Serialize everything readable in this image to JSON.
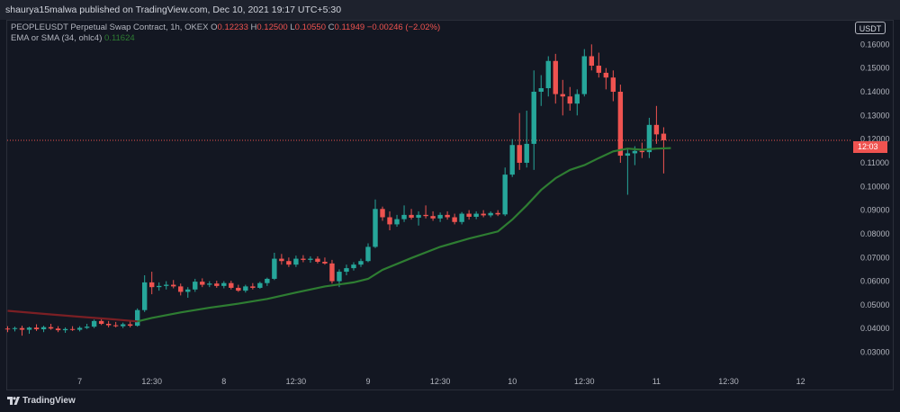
{
  "header": {
    "published": "shaurya15malwa published on TradingView.com, Dec 10, 2021 19:17 UTC+5:30"
  },
  "legend": {
    "symbol": "PEOPLEUSDT Perpetual Swap Contract, 1h, OKEX",
    "o_key": "O",
    "o_val": "0.12233",
    "h_key": "H",
    "h_val": "0.12500",
    "l_key": "L",
    "l_val": "0.10550",
    "c_key": "C",
    "c_val": "0.11949",
    "chg": "−0.00246 (−2.02%)",
    "ma_label": "EMA or SMA (34, ohlc4)",
    "ma_val": "0.11624"
  },
  "currency": "USDT",
  "countdown": "12:03",
  "footer": {
    "brand": "TradingView"
  },
  "colors": {
    "up": "#26a69a",
    "down": "#ef5350",
    "ma": "#2e7d32",
    "ma_early": "#7b1f24",
    "bg": "#131722"
  },
  "chart_data": {
    "type": "candlestick",
    "timeframe": "1h",
    "ylim": [
      0.023,
      0.17
    ],
    "y_ticks": [
      "0.16000",
      "0.15000",
      "0.14000",
      "0.13000",
      "0.12000",
      "0.11000",
      "0.10000",
      "0.09000",
      "0.08000",
      "0.07000",
      "0.06000",
      "0.05000",
      "0.04000",
      "0.03000"
    ],
    "y_tick_values": [
      0.16,
      0.15,
      0.14,
      0.13,
      0.12,
      0.11,
      0.1,
      0.09,
      0.08,
      0.07,
      0.06,
      0.05,
      0.04,
      0.03
    ],
    "x_ticks": [
      "7",
      "12:30",
      "8",
      "12:30",
      "9",
      "12:30",
      "10",
      "12:30",
      "11",
      "12:30",
      "12"
    ],
    "x_tick_index": [
      10,
      20,
      30,
      40,
      50,
      60,
      70,
      80,
      90,
      100,
      110
    ],
    "last_price": 0.1195,
    "candles": [
      {
        "o": 0.04,
        "h": 0.041,
        "l": 0.0385,
        "c": 0.0398
      },
      {
        "o": 0.0398,
        "h": 0.0408,
        "l": 0.0388,
        "c": 0.0402
      },
      {
        "o": 0.0402,
        "h": 0.0412,
        "l": 0.037,
        "c": 0.0395
      },
      {
        "o": 0.0395,
        "h": 0.0408,
        "l": 0.0378,
        "c": 0.0404
      },
      {
        "o": 0.0404,
        "h": 0.0418,
        "l": 0.039,
        "c": 0.0397
      },
      {
        "o": 0.0397,
        "h": 0.0412,
        "l": 0.0385,
        "c": 0.0406
      },
      {
        "o": 0.0406,
        "h": 0.042,
        "l": 0.0395,
        "c": 0.04
      },
      {
        "o": 0.04,
        "h": 0.041,
        "l": 0.0385,
        "c": 0.0393
      },
      {
        "o": 0.0393,
        "h": 0.0405,
        "l": 0.0382,
        "c": 0.0398
      },
      {
        "o": 0.0398,
        "h": 0.041,
        "l": 0.039,
        "c": 0.0395
      },
      {
        "o": 0.0395,
        "h": 0.041,
        "l": 0.0388,
        "c": 0.0403
      },
      {
        "o": 0.0403,
        "h": 0.042,
        "l": 0.0398,
        "c": 0.0408
      },
      {
        "o": 0.0408,
        "h": 0.0438,
        "l": 0.0402,
        "c": 0.0432
      },
      {
        "o": 0.0432,
        "h": 0.0445,
        "l": 0.0415,
        "c": 0.042
      },
      {
        "o": 0.042,
        "h": 0.0432,
        "l": 0.0405,
        "c": 0.0414
      },
      {
        "o": 0.0414,
        "h": 0.0428,
        "l": 0.0405,
        "c": 0.041
      },
      {
        "o": 0.041,
        "h": 0.0425,
        "l": 0.0402,
        "c": 0.0418
      },
      {
        "o": 0.0418,
        "h": 0.043,
        "l": 0.0405,
        "c": 0.0412
      },
      {
        "o": 0.0412,
        "h": 0.0485,
        "l": 0.0408,
        "c": 0.0478
      },
      {
        "o": 0.0478,
        "h": 0.0625,
        "l": 0.047,
        "c": 0.0595
      },
      {
        "o": 0.0595,
        "h": 0.064,
        "l": 0.0545,
        "c": 0.0575
      },
      {
        "o": 0.0575,
        "h": 0.0595,
        "l": 0.056,
        "c": 0.058
      },
      {
        "o": 0.058,
        "h": 0.06,
        "l": 0.0565,
        "c": 0.0585
      },
      {
        "o": 0.0585,
        "h": 0.0605,
        "l": 0.057,
        "c": 0.0578
      },
      {
        "o": 0.0578,
        "h": 0.059,
        "l": 0.054,
        "c": 0.0555
      },
      {
        "o": 0.0555,
        "h": 0.0575,
        "l": 0.053,
        "c": 0.0565
      },
      {
        "o": 0.0565,
        "h": 0.061,
        "l": 0.0555,
        "c": 0.0598
      },
      {
        "o": 0.0598,
        "h": 0.0612,
        "l": 0.0575,
        "c": 0.0585
      },
      {
        "o": 0.0585,
        "h": 0.06,
        "l": 0.0575,
        "c": 0.059
      },
      {
        "o": 0.059,
        "h": 0.0602,
        "l": 0.0572,
        "c": 0.058
      },
      {
        "o": 0.058,
        "h": 0.06,
        "l": 0.057,
        "c": 0.0592
      },
      {
        "o": 0.0592,
        "h": 0.0602,
        "l": 0.0565,
        "c": 0.0572
      },
      {
        "o": 0.0572,
        "h": 0.0585,
        "l": 0.0555,
        "c": 0.056
      },
      {
        "o": 0.056,
        "h": 0.0585,
        "l": 0.0552,
        "c": 0.0578
      },
      {
        "o": 0.0578,
        "h": 0.0592,
        "l": 0.0565,
        "c": 0.0572
      },
      {
        "o": 0.0572,
        "h": 0.0598,
        "l": 0.0568,
        "c": 0.0592
      },
      {
        "o": 0.0592,
        "h": 0.0615,
        "l": 0.058,
        "c": 0.061
      },
      {
        "o": 0.061,
        "h": 0.072,
        "l": 0.0605,
        "c": 0.0695
      },
      {
        "o": 0.0695,
        "h": 0.0715,
        "l": 0.067,
        "c": 0.0685
      },
      {
        "o": 0.0685,
        "h": 0.07,
        "l": 0.066,
        "c": 0.067
      },
      {
        "o": 0.067,
        "h": 0.0708,
        "l": 0.066,
        "c": 0.0695
      },
      {
        "o": 0.0695,
        "h": 0.071,
        "l": 0.068,
        "c": 0.069
      },
      {
        "o": 0.069,
        "h": 0.0705,
        "l": 0.0678,
        "c": 0.0695
      },
      {
        "o": 0.0695,
        "h": 0.0705,
        "l": 0.0675,
        "c": 0.0682
      },
      {
        "o": 0.0682,
        "h": 0.07,
        "l": 0.067,
        "c": 0.0675
      },
      {
        "o": 0.0675,
        "h": 0.069,
        "l": 0.059,
        "c": 0.06
      },
      {
        "o": 0.06,
        "h": 0.065,
        "l": 0.0575,
        "c": 0.064
      },
      {
        "o": 0.064,
        "h": 0.067,
        "l": 0.0625,
        "c": 0.0655
      },
      {
        "o": 0.0655,
        "h": 0.068,
        "l": 0.0645,
        "c": 0.067
      },
      {
        "o": 0.067,
        "h": 0.0695,
        "l": 0.066,
        "c": 0.0685
      },
      {
        "o": 0.0685,
        "h": 0.076,
        "l": 0.068,
        "c": 0.0745
      },
      {
        "o": 0.0745,
        "h": 0.0945,
        "l": 0.074,
        "c": 0.0905
      },
      {
        "o": 0.0905,
        "h": 0.0915,
        "l": 0.0855,
        "c": 0.087
      },
      {
        "o": 0.087,
        "h": 0.0895,
        "l": 0.0815,
        "c": 0.084
      },
      {
        "o": 0.084,
        "h": 0.088,
        "l": 0.083,
        "c": 0.0862
      },
      {
        "o": 0.0862,
        "h": 0.092,
        "l": 0.085,
        "c": 0.088
      },
      {
        "o": 0.088,
        "h": 0.0905,
        "l": 0.086,
        "c": 0.0868
      },
      {
        "o": 0.0868,
        "h": 0.0895,
        "l": 0.0835,
        "c": 0.088
      },
      {
        "o": 0.088,
        "h": 0.092,
        "l": 0.0865,
        "c": 0.0875
      },
      {
        "o": 0.0875,
        "h": 0.0895,
        "l": 0.0855,
        "c": 0.0865
      },
      {
        "o": 0.0865,
        "h": 0.089,
        "l": 0.085,
        "c": 0.088
      },
      {
        "o": 0.088,
        "h": 0.0895,
        "l": 0.086,
        "c": 0.087
      },
      {
        "o": 0.087,
        "h": 0.0885,
        "l": 0.084,
        "c": 0.085
      },
      {
        "o": 0.085,
        "h": 0.0892,
        "l": 0.084,
        "c": 0.0885
      },
      {
        "o": 0.0885,
        "h": 0.09,
        "l": 0.086,
        "c": 0.0872
      },
      {
        "o": 0.0872,
        "h": 0.0895,
        "l": 0.0862,
        "c": 0.0885
      },
      {
        "o": 0.0885,
        "h": 0.09,
        "l": 0.087,
        "c": 0.0878
      },
      {
        "o": 0.0878,
        "h": 0.0895,
        "l": 0.087,
        "c": 0.0888
      },
      {
        "o": 0.0888,
        "h": 0.09,
        "l": 0.0875,
        "c": 0.0882
      },
      {
        "o": 0.0882,
        "h": 0.108,
        "l": 0.0875,
        "c": 0.105
      },
      {
        "o": 0.105,
        "h": 0.12,
        "l": 0.104,
        "c": 0.1175
      },
      {
        "o": 0.1175,
        "h": 0.131,
        "l": 0.107,
        "c": 0.11
      },
      {
        "o": 0.11,
        "h": 0.132,
        "l": 0.108,
        "c": 0.118
      },
      {
        "o": 0.118,
        "h": 0.149,
        "l": 0.107,
        "c": 0.14
      },
      {
        "o": 0.14,
        "h": 0.147,
        "l": 0.134,
        "c": 0.1415
      },
      {
        "o": 0.1415,
        "h": 0.155,
        "l": 0.138,
        "c": 0.153
      },
      {
        "o": 0.153,
        "h": 0.156,
        "l": 0.135,
        "c": 0.139
      },
      {
        "o": 0.139,
        "h": 0.145,
        "l": 0.13,
        "c": 0.138
      },
      {
        "o": 0.138,
        "h": 0.142,
        "l": 0.132,
        "c": 0.135
      },
      {
        "o": 0.135,
        "h": 0.141,
        "l": 0.13,
        "c": 0.139
      },
      {
        "o": 0.139,
        "h": 0.158,
        "l": 0.138,
        "c": 0.155
      },
      {
        "o": 0.155,
        "h": 0.16,
        "l": 0.149,
        "c": 0.151
      },
      {
        "o": 0.151,
        "h": 0.1565,
        "l": 0.146,
        "c": 0.148
      },
      {
        "o": 0.148,
        "h": 0.15,
        "l": 0.141,
        "c": 0.146
      },
      {
        "o": 0.146,
        "h": 0.149,
        "l": 0.136,
        "c": 0.14
      },
      {
        "o": 0.14,
        "h": 0.143,
        "l": 0.11,
        "c": 0.113
      },
      {
        "o": 0.113,
        "h": 0.116,
        "l": 0.0965,
        "c": 0.114
      },
      {
        "o": 0.114,
        "h": 0.117,
        "l": 0.109,
        "c": 0.115
      },
      {
        "o": 0.115,
        "h": 0.1185,
        "l": 0.112,
        "c": 0.1145
      },
      {
        "o": 0.1145,
        "h": 0.129,
        "l": 0.112,
        "c": 0.126
      },
      {
        "o": 0.126,
        "h": 0.134,
        "l": 0.118,
        "c": 0.122
      },
      {
        "o": 0.1223,
        "h": 0.125,
        "l": 0.1055,
        "c": 0.1195
      }
    ],
    "ma": [
      {
        "i": 0,
        "v": 0.0475
      },
      {
        "i": 5,
        "v": 0.0462
      },
      {
        "i": 10,
        "v": 0.045
      },
      {
        "i": 15,
        "v": 0.0438
      },
      {
        "i": 18,
        "v": 0.043
      },
      {
        "i": 20,
        "v": 0.0445
      },
      {
        "i": 24,
        "v": 0.0468
      },
      {
        "i": 28,
        "v": 0.0488
      },
      {
        "i": 32,
        "v": 0.0505
      },
      {
        "i": 36,
        "v": 0.0525
      },
      {
        "i": 40,
        "v": 0.0552
      },
      {
        "i": 44,
        "v": 0.0578
      },
      {
        "i": 48,
        "v": 0.0595
      },
      {
        "i": 50,
        "v": 0.061
      },
      {
        "i": 52,
        "v": 0.0648
      },
      {
        "i": 56,
        "v": 0.0698
      },
      {
        "i": 60,
        "v": 0.0745
      },
      {
        "i": 64,
        "v": 0.078
      },
      {
        "i": 68,
        "v": 0.081
      },
      {
        "i": 70,
        "v": 0.086
      },
      {
        "i": 72,
        "v": 0.092
      },
      {
        "i": 74,
        "v": 0.0985
      },
      {
        "i": 76,
        "v": 0.1035
      },
      {
        "i": 78,
        "v": 0.107
      },
      {
        "i": 80,
        "v": 0.109
      },
      {
        "i": 82,
        "v": 0.112
      },
      {
        "i": 84,
        "v": 0.1148
      },
      {
        "i": 86,
        "v": 0.116
      },
      {
        "i": 88,
        "v": 0.1155
      },
      {
        "i": 90,
        "v": 0.116
      },
      {
        "i": 92,
        "v": 0.1162
      }
    ],
    "ma_colour_change_index": 18
  }
}
